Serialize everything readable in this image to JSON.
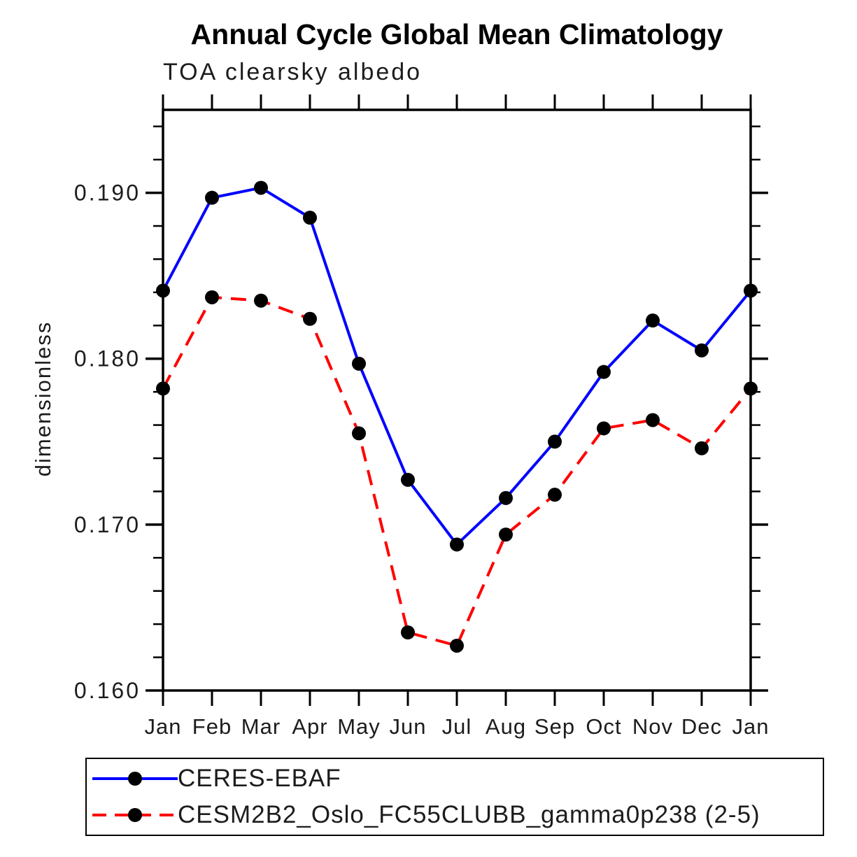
{
  "title": "Annual Cycle Global Mean Climatology",
  "chart_data": {
    "type": "line",
    "title": "Annual Cycle Global Mean Climatology",
    "subtitle": "TOA clearsky albedo",
    "ylabel": "dimensionless",
    "xlabel": "",
    "categories": [
      "Jan",
      "Feb",
      "Mar",
      "Apr",
      "May",
      "Jun",
      "Jul",
      "Aug",
      "Sep",
      "Oct",
      "Nov",
      "Dec",
      "Jan"
    ],
    "series": [
      {
        "name": "CERES-EBAF",
        "color": "#0000ff",
        "line_style": "solid",
        "marker": "filled-circle",
        "marker_color": "#000000",
        "values": [
          0.1841,
          0.1897,
          0.1903,
          0.1885,
          0.1797,
          0.1727,
          0.1688,
          0.1716,
          0.175,
          0.1792,
          0.1823,
          0.1805,
          0.1841
        ]
      },
      {
        "name": "CESM2B2_Oslo_FC55CLUBB_gamma0p238 (2-5)",
        "color": "#ff0000",
        "line_style": "dashed",
        "marker": "filled-circle",
        "marker_color": "#000000",
        "values": [
          0.1782,
          0.1837,
          0.1835,
          0.1824,
          0.1755,
          0.1635,
          0.1627,
          0.1694,
          0.1718,
          0.1758,
          0.1763,
          0.1746,
          0.1782
        ]
      }
    ],
    "ylim": [
      0.16,
      0.195
    ],
    "yticks": [
      0.16,
      0.17,
      0.18,
      0.19
    ],
    "ytick_labels": [
      "0.160",
      "0.170",
      "0.180",
      "0.190"
    ],
    "y_minor_step": 0.002,
    "grid": false,
    "legend_position": "bottom"
  }
}
